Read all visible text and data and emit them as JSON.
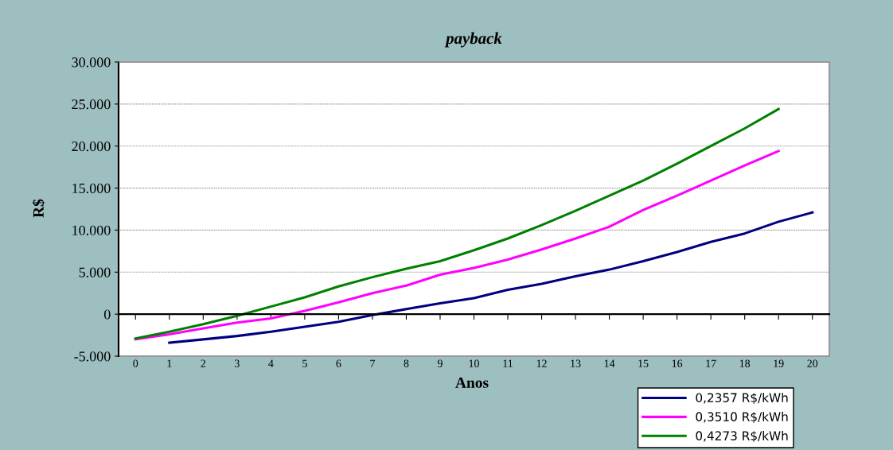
{
  "chart_data": {
    "type": "line",
    "title": "payback",
    "xlabel": "Anos",
    "ylabel": "R$",
    "categories": [
      "0",
      "1",
      "2",
      "3",
      "4",
      "5",
      "6",
      "7",
      "8",
      "9",
      "10",
      "11",
      "12",
      "13",
      "14",
      "15",
      "16",
      "17",
      "18",
      "19",
      "20"
    ],
    "series": [
      {
        "name": "0,2357 R$/kWh",
        "color": "#000080",
        "values": [
          null,
          -3400,
          -3000,
          -2600,
          -2100,
          -1500,
          -900,
          -100,
          600,
          1300,
          1900,
          2900,
          3600,
          4500,
          5300,
          6300,
          7400,
          8600,
          9600,
          11000,
          12100
        ]
      },
      {
        "name": "0,3510 R$/kWh",
        "color": "#ff00ff",
        "values": [
          -3000,
          -2400,
          -1700,
          -1000,
          -500,
          400,
          1400,
          2500,
          3400,
          4700,
          5500,
          6500,
          7700,
          9000,
          10400,
          12400,
          14100,
          15900,
          17700,
          19400,
          null
        ]
      },
      {
        "name": "0,4273 R$/kWh",
        "color": "#008000",
        "values": [
          -2900,
          -2100,
          -1200,
          -200,
          900,
          2000,
          3300,
          4400,
          5400,
          6300,
          7600,
          9000,
          10600,
          12300,
          14100,
          15900,
          17900,
          20000,
          22100,
          24400,
          null
        ]
      }
    ],
    "ylim": [
      -5000,
      30000
    ],
    "yticks": [
      {
        "value": -5000,
        "label": "-5.000"
      },
      0,
      {
        "value": 5000,
        "label": "5.000"
      },
      {
        "value": 10000,
        "label": "10.000"
      },
      {
        "value": 15000,
        "label": "15.000"
      },
      {
        "value": 20000,
        "label": "20.000"
      },
      {
        "value": 25000,
        "label": "25.000"
      },
      {
        "value": 30000,
        "label": "30.000"
      }
    ],
    "grid": "y",
    "legend": "bottom right",
    "marker": "none",
    "line_style": "solid"
  }
}
